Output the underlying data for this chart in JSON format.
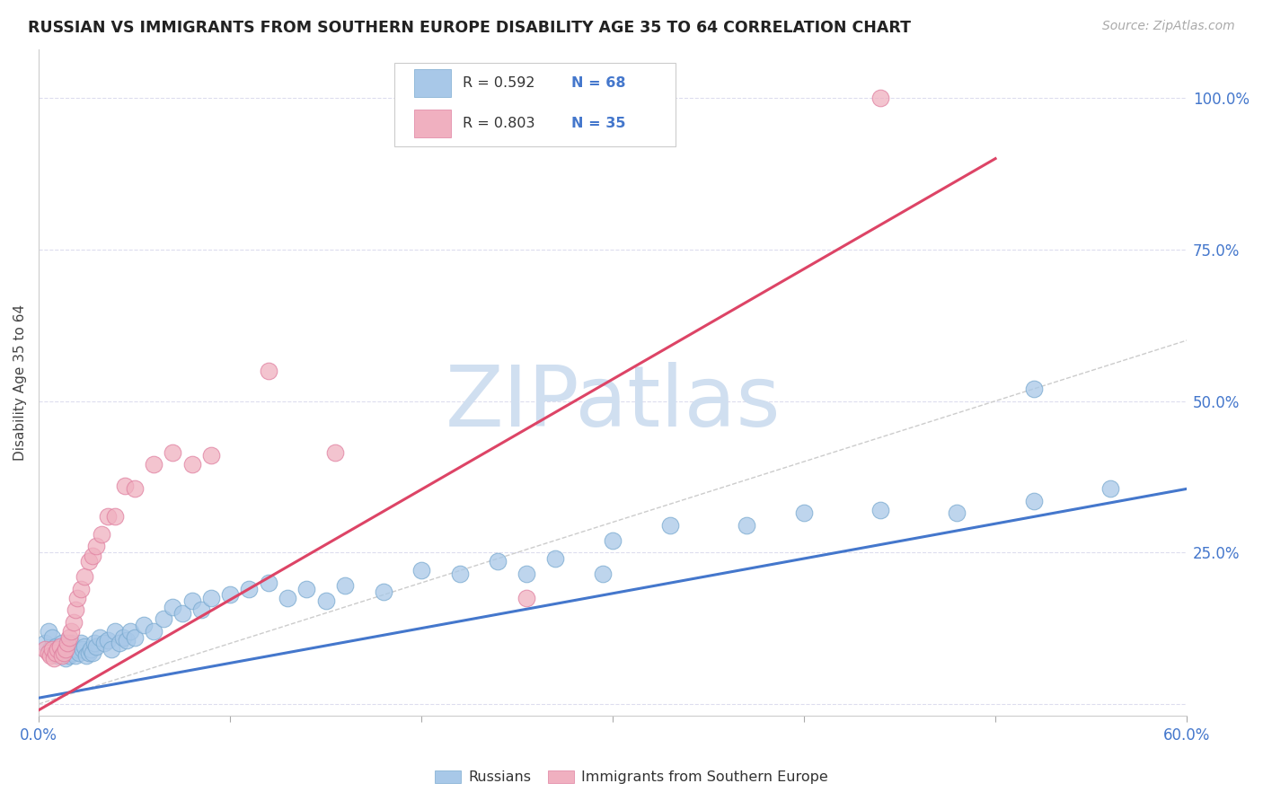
{
  "title": "RUSSIAN VS IMMIGRANTS FROM SOUTHERN EUROPE DISABILITY AGE 35 TO 64 CORRELATION CHART",
  "source": "Source: ZipAtlas.com",
  "ylabel": "Disability Age 35 to 64",
  "xlim": [
    0.0,
    0.6
  ],
  "ylim": [
    -0.02,
    1.08
  ],
  "blue_color": "#a8c8e8",
  "blue_edge_color": "#7aaad0",
  "pink_color": "#f0b0c0",
  "pink_edge_color": "#e080a0",
  "blue_line_color": "#4477cc",
  "pink_line_color": "#dd4466",
  "diagonal_color": "#cccccc",
  "watermark": "ZIPatlas",
  "watermark_color": "#d0dff0",
  "legend_r1": "R = 0.592",
  "legend_n1": "N = 68",
  "legend_r2": "R = 0.803",
  "legend_n2": "N = 35",
  "legend_label1": "Russians",
  "legend_label2": "Immigrants from Southern Europe",
  "r_color": "#333333",
  "n_color": "#4477cc",
  "blue_trend_x0": 0.0,
  "blue_trend_y0": 0.01,
  "blue_trend_x1": 0.6,
  "blue_trend_y1": 0.355,
  "pink_trend_x0": 0.0,
  "pink_trend_y0": -0.01,
  "pink_trend_x1": 0.5,
  "pink_trend_y1": 0.9,
  "blue_scatter_x": [
    0.003,
    0.005,
    0.006,
    0.007,
    0.008,
    0.009,
    0.01,
    0.011,
    0.012,
    0.013,
    0.014,
    0.015,
    0.016,
    0.017,
    0.018,
    0.019,
    0.02,
    0.021,
    0.022,
    0.023,
    0.024,
    0.025,
    0.026,
    0.027,
    0.028,
    0.029,
    0.03,
    0.032,
    0.034,
    0.036,
    0.038,
    0.04,
    0.042,
    0.044,
    0.046,
    0.048,
    0.05,
    0.055,
    0.06,
    0.065,
    0.07,
    0.075,
    0.08,
    0.085,
    0.09,
    0.1,
    0.11,
    0.12,
    0.13,
    0.14,
    0.15,
    0.16,
    0.18,
    0.2,
    0.22,
    0.24,
    0.27,
    0.3,
    0.33,
    0.37,
    0.4,
    0.44,
    0.48,
    0.52,
    0.56,
    0.255,
    0.295,
    0.52
  ],
  "blue_scatter_y": [
    0.1,
    0.12,
    0.09,
    0.11,
    0.085,
    0.095,
    0.08,
    0.09,
    0.1,
    0.085,
    0.075,
    0.09,
    0.08,
    0.1,
    0.085,
    0.08,
    0.09,
    0.085,
    0.1,
    0.09,
    0.095,
    0.08,
    0.085,
    0.09,
    0.085,
    0.1,
    0.095,
    0.11,
    0.1,
    0.105,
    0.09,
    0.12,
    0.1,
    0.11,
    0.105,
    0.12,
    0.11,
    0.13,
    0.12,
    0.14,
    0.16,
    0.15,
    0.17,
    0.155,
    0.175,
    0.18,
    0.19,
    0.2,
    0.175,
    0.19,
    0.17,
    0.195,
    0.185,
    0.22,
    0.215,
    0.235,
    0.24,
    0.27,
    0.295,
    0.295,
    0.315,
    0.32,
    0.315,
    0.52,
    0.355,
    0.215,
    0.215,
    0.335
  ],
  "pink_scatter_x": [
    0.003,
    0.005,
    0.006,
    0.007,
    0.008,
    0.009,
    0.01,
    0.011,
    0.012,
    0.013,
    0.014,
    0.015,
    0.016,
    0.017,
    0.018,
    0.019,
    0.02,
    0.022,
    0.024,
    0.026,
    0.028,
    0.03,
    0.033,
    0.036,
    0.04,
    0.045,
    0.05,
    0.06,
    0.07,
    0.08,
    0.09,
    0.12,
    0.155,
    0.255,
    0.44
  ],
  "pink_scatter_y": [
    0.09,
    0.085,
    0.08,
    0.09,
    0.075,
    0.085,
    0.09,
    0.095,
    0.08,
    0.085,
    0.09,
    0.1,
    0.11,
    0.12,
    0.135,
    0.155,
    0.175,
    0.19,
    0.21,
    0.235,
    0.245,
    0.26,
    0.28,
    0.31,
    0.31,
    0.36,
    0.355,
    0.395,
    0.415,
    0.395,
    0.41,
    0.55,
    0.415,
    0.175,
    1.0
  ]
}
